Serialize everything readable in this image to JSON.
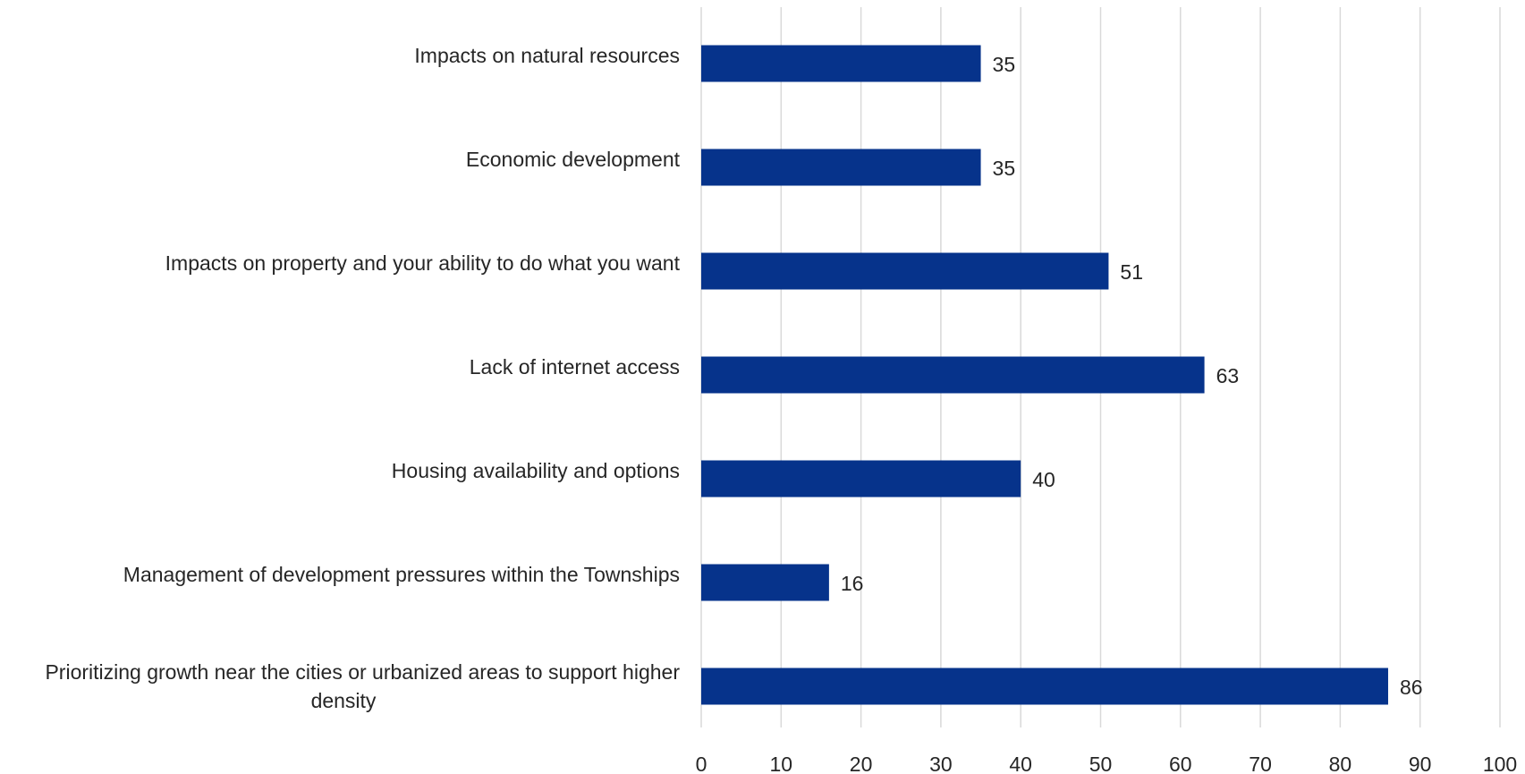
{
  "chart_data": {
    "type": "bar",
    "orientation": "horizontal",
    "title": "",
    "xlabel": "",
    "ylabel": "",
    "categories": [
      "Impacts on natural resources",
      "Economic development",
      "Impacts on property and your ability to do what you want",
      "Lack of internet access",
      "Housing availability and options",
      "Management of development pressures within the Townships",
      "Prioritizing growth near the cities or urbanized areas to support higher density"
    ],
    "category_lines": [
      [
        "Impacts on natural resources"
      ],
      [
        "Economic development"
      ],
      [
        "Impacts on property and your ability to do what you want"
      ],
      [
        "Lack of internet access"
      ],
      [
        "Housing availability and options"
      ],
      [
        "Management of development pressures within the Townships"
      ],
      [
        "Prioritizing growth near the cities or urbanized areas to support higher",
        "density"
      ]
    ],
    "values": [
      35,
      35,
      51,
      63,
      40,
      16,
      86
    ],
    "xlim": [
      0,
      100
    ],
    "xticks": [
      0,
      10,
      20,
      30,
      40,
      50,
      60,
      70,
      80,
      90,
      100
    ],
    "grid": "vertical",
    "legend": "none",
    "data_labels": true,
    "colors": {
      "bar": "#06338b",
      "grid": "#d9d9d9",
      "text": "#262626"
    }
  }
}
